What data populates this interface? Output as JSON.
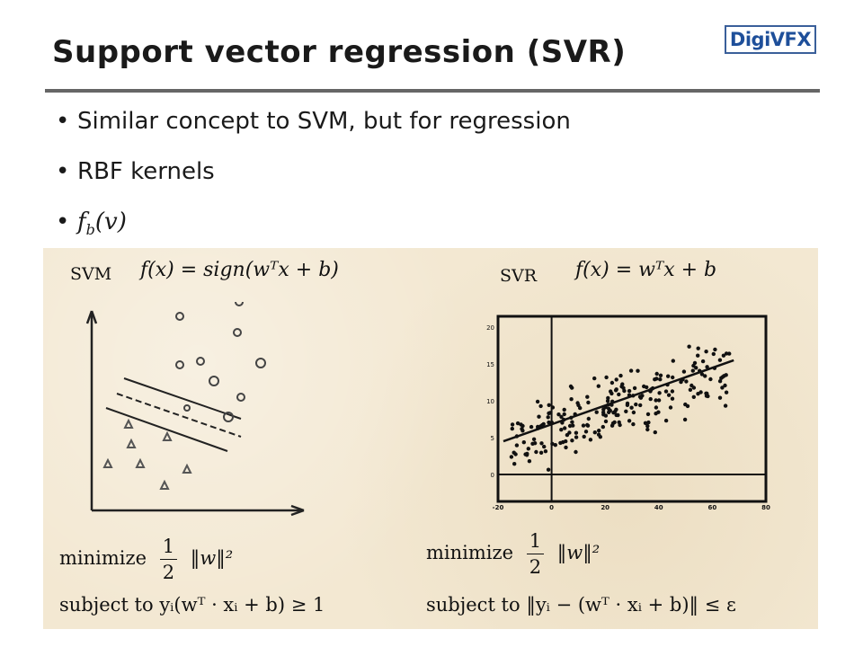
{
  "slide": {
    "title": "Support vector regression (SVR)",
    "logo": "DigiVFX",
    "bullets": [
      "Similar concept to SVM, but for regression",
      "RBF kernels"
    ],
    "bullet3_f": "f",
    "bullet3_sub": "b",
    "bullet3_arg": "(v)"
  },
  "svm": {
    "label": "SVM",
    "formula": "f(x) = sign(wᵀx + b)",
    "minimize": "minimize",
    "half_num": "1",
    "half_den": "2",
    "norm": "‖w‖²",
    "subject": "subject to yᵢ(wᵀ · xᵢ + b) ≥ 1"
  },
  "svr": {
    "label": "SVR",
    "formula": "f(x) = wᵀx + b",
    "minimize": "minimize",
    "half_num": "1",
    "half_den": "2",
    "norm": "‖w‖²",
    "subject": "subject to ‖yᵢ − (wᵀ · xᵢ + b)‖ ≤ ε",
    "y_ticks": [
      "20",
      "15",
      "10",
      "5",
      "0"
    ],
    "x_ticks": [
      "-20",
      "0",
      "20",
      "40",
      "60",
      "80"
    ]
  }
}
